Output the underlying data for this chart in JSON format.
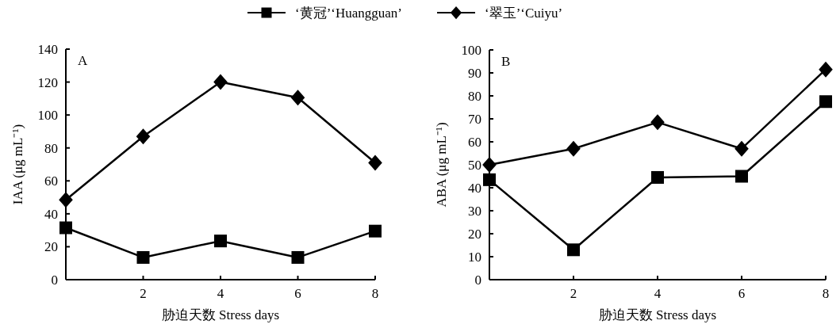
{
  "chart_data": [
    {
      "type": "line",
      "xlabel": "胁迫天数 Stress days",
      "ylabel": "IAA (μg mL⁻¹)",
      "annotations": [
        "A"
      ],
      "x": [
        0,
        2,
        4,
        6,
        8
      ],
      "xlim": [
        0,
        8
      ],
      "xticks": [
        2,
        4,
        6,
        8
      ],
      "ylim": [
        0,
        140
      ],
      "yticks": [
        0,
        20,
        40,
        60,
        80,
        100,
        120,
        140
      ],
      "grid": false,
      "legend": "top",
      "series": [
        {
          "name": "‘黄冠’‘Huangguan’",
          "color": "#000000",
          "marker": "square",
          "values": [
            31.5,
            13.5,
            23.5,
            13.5,
            29.5
          ]
        },
        {
          "name": "‘翠玉’‘Cuiyu’",
          "color": "#000000",
          "marker": "diamond",
          "values": [
            48.5,
            87,
            120,
            110.5,
            71
          ]
        }
      ]
    },
    {
      "type": "line",
      "xlabel": "胁迫天数 Stress days",
      "ylabel": "ABA (μg mL⁻¹)",
      "annotations": [
        "B"
      ],
      "x": [
        0,
        2,
        4,
        6,
        8
      ],
      "xlim": [
        0,
        8
      ],
      "xticks": [
        2,
        4,
        6,
        8
      ],
      "ylim": [
        0,
        100
      ],
      "yticks": [
        0,
        10,
        20,
        30,
        40,
        50,
        60,
        70,
        80,
        90,
        100
      ],
      "grid": false,
      "series": [
        {
          "color": "#000000",
          "marker": "square",
          "values": [
            43.5,
            13,
            44.5,
            45,
            77.5
          ]
        },
        {
          "color": "#000000",
          "marker": "diamond",
          "values": [
            50,
            57,
            68.5,
            57,
            91.5
          ]
        }
      ]
    }
  ]
}
